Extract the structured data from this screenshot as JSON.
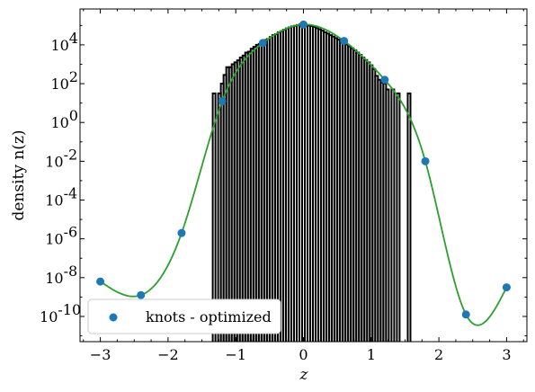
{
  "chart_data": {
    "type": "line",
    "xlabel": "z",
    "ylabel": "density n(z)",
    "xlim": [
      -3.3,
      3.3
    ],
    "ylim_log10": [
      -11.3,
      5.85
    ],
    "y_scale": "log",
    "x_ticks": [
      -3,
      -2,
      -1,
      0,
      1,
      2,
      3
    ],
    "x_tick_labels": [
      "−3",
      "−2",
      "−1",
      "0",
      "1",
      "2",
      "3"
    ],
    "y_tick_exponents": [
      -10,
      -8,
      -6,
      -4,
      -2,
      0,
      2,
      4
    ],
    "y_tick_labels": [
      "10",
      "10",
      "10",
      "10",
      "10",
      "10",
      "10",
      "10"
    ],
    "y_tick_label_exps": [
      "-10",
      "-8",
      "-6",
      "-4",
      "-2",
      "0",
      "2",
      "4"
    ],
    "legend": {
      "label": "knots - optimized",
      "placement": "lower-left"
    },
    "colors": {
      "curve": "#2ca02c",
      "knots": "#1f77b4",
      "histogram": "#000000"
    },
    "knots": {
      "name": "knots - optimized",
      "x": [
        -3.0,
        -2.4,
        -1.8,
        -1.2,
        -0.6,
        0.0,
        0.6,
        1.2,
        1.8,
        2.4,
        3.0
      ],
      "log10_y": [
        -8.2,
        -8.9,
        -5.7,
        1.1,
        4.1,
        5.05,
        4.2,
        2.2,
        -2.0,
        -9.9,
        -8.5
      ]
    },
    "histogram": {
      "bin_width": 0.04,
      "bins": [
        {
          "x": -1.32,
          "log10_y": 1.5
        },
        {
          "x": -1.24,
          "log10_y": 1.5
        },
        {
          "x": -1.2,
          "log10_y": 2.0
        },
        {
          "x": -1.16,
          "log10_y": 2.45
        },
        {
          "x": -1.12,
          "log10_y": 2.85
        },
        {
          "x": -1.08,
          "log10_y": 2.85
        },
        {
          "x": -1.04,
          "log10_y": 3.0
        },
        {
          "x": -1.0,
          "log10_y": 3.1
        },
        {
          "x": -0.96,
          "log10_y": 3.2
        },
        {
          "x": -0.92,
          "log10_y": 3.35
        },
        {
          "x": -0.88,
          "log10_y": 3.45
        },
        {
          "x": -0.84,
          "log10_y": 3.6
        },
        {
          "x": -0.8,
          "log10_y": 3.65
        },
        {
          "x": -0.76,
          "log10_y": 3.8
        },
        {
          "x": -0.72,
          "log10_y": 3.9
        },
        {
          "x": -0.68,
          "log10_y": 4.0
        },
        {
          "x": -0.64,
          "log10_y": 4.05
        },
        {
          "x": -0.6,
          "log10_y": 4.15
        },
        {
          "x": -0.56,
          "log10_y": 4.25
        },
        {
          "x": -0.52,
          "log10_y": 4.3
        },
        {
          "x": -0.48,
          "log10_y": 4.4
        },
        {
          "x": -0.44,
          "log10_y": 4.5
        },
        {
          "x": -0.4,
          "log10_y": 4.55
        },
        {
          "x": -0.36,
          "log10_y": 4.65
        },
        {
          "x": -0.32,
          "log10_y": 4.7
        },
        {
          "x": -0.28,
          "log10_y": 4.78
        },
        {
          "x": -0.24,
          "log10_y": 4.85
        },
        {
          "x": -0.2,
          "log10_y": 4.9
        },
        {
          "x": -0.16,
          "log10_y": 4.95
        },
        {
          "x": -0.12,
          "log10_y": 4.98
        },
        {
          "x": -0.08,
          "log10_y": 5.02
        },
        {
          "x": -0.04,
          "log10_y": 5.05
        },
        {
          "x": 0.0,
          "log10_y": 5.05
        },
        {
          "x": 0.04,
          "log10_y": 5.03
        },
        {
          "x": 0.08,
          "log10_y": 5.0
        },
        {
          "x": 0.12,
          "log10_y": 4.97
        },
        {
          "x": 0.16,
          "log10_y": 4.92
        },
        {
          "x": 0.2,
          "log10_y": 4.86
        },
        {
          "x": 0.24,
          "log10_y": 4.8
        },
        {
          "x": 0.28,
          "log10_y": 4.73
        },
        {
          "x": 0.32,
          "log10_y": 4.65
        },
        {
          "x": 0.36,
          "log10_y": 4.58
        },
        {
          "x": 0.4,
          "log10_y": 4.5
        },
        {
          "x": 0.44,
          "log10_y": 4.43
        },
        {
          "x": 0.48,
          "log10_y": 4.35
        },
        {
          "x": 0.52,
          "log10_y": 4.27
        },
        {
          "x": 0.56,
          "log10_y": 4.2
        },
        {
          "x": 0.6,
          "log10_y": 4.12
        },
        {
          "x": 0.64,
          "log10_y": 4.02
        },
        {
          "x": 0.68,
          "log10_y": 3.92
        },
        {
          "x": 0.72,
          "log10_y": 3.82
        },
        {
          "x": 0.76,
          "log10_y": 3.72
        },
        {
          "x": 0.8,
          "log10_y": 3.6
        },
        {
          "x": 0.84,
          "log10_y": 3.48
        },
        {
          "x": 0.88,
          "log10_y": 3.35
        },
        {
          "x": 0.92,
          "log10_y": 3.22
        },
        {
          "x": 0.96,
          "log10_y": 3.1
        },
        {
          "x": 1.0,
          "log10_y": 2.95
        },
        {
          "x": 1.04,
          "log10_y": 2.75
        },
        {
          "x": 1.08,
          "log10_y": 2.4
        },
        {
          "x": 1.12,
          "log10_y": 2.2
        },
        {
          "x": 1.16,
          "log10_y": 2.05
        },
        {
          "x": 1.2,
          "log10_y": 2.0
        },
        {
          "x": 1.24,
          "log10_y": 1.7
        },
        {
          "x": 1.32,
          "log10_y": 1.7
        },
        {
          "x": 1.4,
          "log10_y": 1.5
        },
        {
          "x": 1.56,
          "log10_y": 1.5
        }
      ]
    }
  }
}
